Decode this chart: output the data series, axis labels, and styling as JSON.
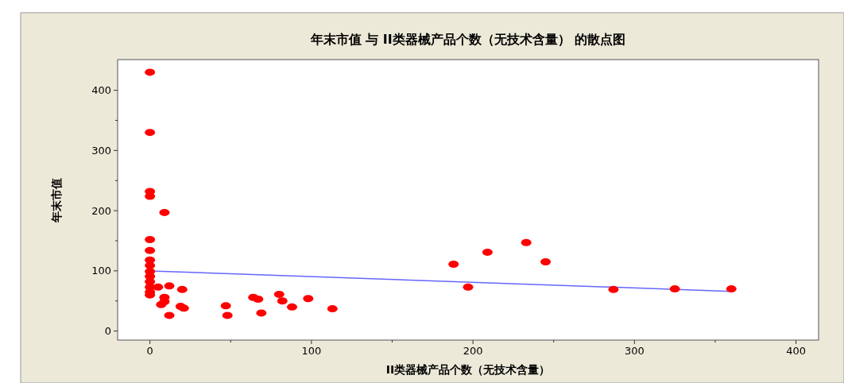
{
  "chart_data": {
    "type": "scatter",
    "title": "年末市值 与 II类器械产品个数（无技术含量） 的散点图",
    "xlabel": "II类器械产品个数（无技术含量）",
    "ylabel": "年末市值",
    "xlim": [
      -20,
      414
    ],
    "ylim": [
      -15,
      451
    ],
    "xticks": [
      0,
      {
        "value": 50,
        "label": null
      },
      100,
      {
        "value": 150,
        "label": null
      },
      200,
      {
        "value": 250,
        "label": null
      },
      300,
      {
        "value": 350,
        "label": null
      },
      400
    ],
    "yticks": [
      0,
      {
        "value": 50,
        "label": null
      },
      100,
      {
        "value": 150,
        "label": null
      },
      200,
      {
        "value": 250,
        "label": null
      },
      300,
      {
        "value": 350,
        "label": null
      },
      400
    ],
    "grid": false,
    "marker": "circle",
    "series": [
      {
        "color": "#ff0000",
        "x": [
          0,
          0,
          0,
          0,
          9,
          0,
          0,
          0,
          0,
          0,
          0,
          0,
          0,
          0,
          0,
          5,
          12,
          20,
          9,
          9,
          7,
          12,
          19,
          21,
          47,
          48,
          64,
          67,
          69,
          80,
          82,
          88,
          98,
          113,
          188,
          197,
          209,
          233,
          245,
          287,
          325,
          360
        ],
        "values": [
          430,
          330,
          232,
          224,
          197,
          152,
          134,
          118,
          109,
          99,
          91,
          82,
          73,
          65,
          60,
          73,
          75,
          69,
          56,
          49,
          44,
          26,
          41,
          38,
          42,
          26,
          56,
          53,
          30,
          61,
          50,
          40,
          54,
          37,
          111,
          73,
          131,
          147,
          115,
          69,
          70,
          70
        ]
      },
      {
        "type": "line",
        "color": "#6666ff",
        "marker": "none",
        "x": [
          0,
          360
        ],
        "values": [
          100,
          66
        ]
      }
    ]
  }
}
